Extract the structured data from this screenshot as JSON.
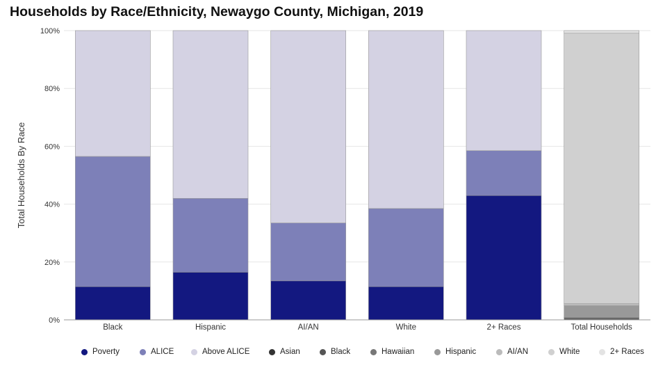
{
  "title": "Households by Race/Ethnicity, Newaygo County, Michigan, 2019",
  "colors": {
    "Poverty": "#131880",
    "ALICE": "#7d80b8",
    "Above ALICE": "#d4d2e3",
    "Asian": "#333333",
    "Black": "#555555",
    "Hawaiian": "#777777",
    "Hispanic": "#999999",
    "AI/AN": "#bbbbbb",
    "White": "#d0d0d0",
    "2+ Races": "#e3e3e3",
    "grid": "#e6e6e6",
    "axis": "#999999",
    "text": "#333333"
  },
  "legend": [
    "Poverty",
    "ALICE",
    "Above ALICE",
    "Asian",
    "Black",
    "Hawaiian",
    "Hispanic",
    "AI/AN",
    "White",
    "2+ Races"
  ],
  "chart_data": [
    {
      "type": "bar",
      "stacked": true,
      "title": "Households by Race/Ethnicity, Newaygo County, Michigan, 2019",
      "ylabel": "Total Households By Race",
      "xlabel": "",
      "ylim": [
        0,
        100
      ],
      "yticks": [
        "0%",
        "20%",
        "40%",
        "60%",
        "80%",
        "100%"
      ],
      "categories": [
        "Black",
        "Hispanic",
        "AI/AN",
        "White",
        "2+ Races"
      ],
      "series": [
        {
          "name": "Poverty",
          "values": [
            11.5,
            16.5,
            13.5,
            11.5,
            43
          ]
        },
        {
          "name": "ALICE",
          "values": [
            45,
            25.5,
            20,
            27,
            15.5
          ]
        },
        {
          "name": "Above ALICE",
          "values": [
            43.5,
            58,
            66.5,
            61.5,
            41.5
          ]
        }
      ],
      "grid": true,
      "legend_position": "bottom"
    },
    {
      "type": "bar",
      "stacked": true,
      "categories": [
        "Total Households"
      ],
      "series": [
        {
          "name": "Asian",
          "values": [
            0.3
          ]
        },
        {
          "name": "Black",
          "values": [
            0.5
          ]
        },
        {
          "name": "Hawaiian",
          "values": [
            0.1
          ]
        },
        {
          "name": "Hispanic",
          "values": [
            4
          ]
        },
        {
          "name": "AI/AN",
          "values": [
            0.7
          ]
        },
        {
          "name": "White",
          "values": [
            93.5
          ]
        },
        {
          "name": "2+ Races",
          "values": [
            0.9
          ]
        }
      ]
    }
  ]
}
